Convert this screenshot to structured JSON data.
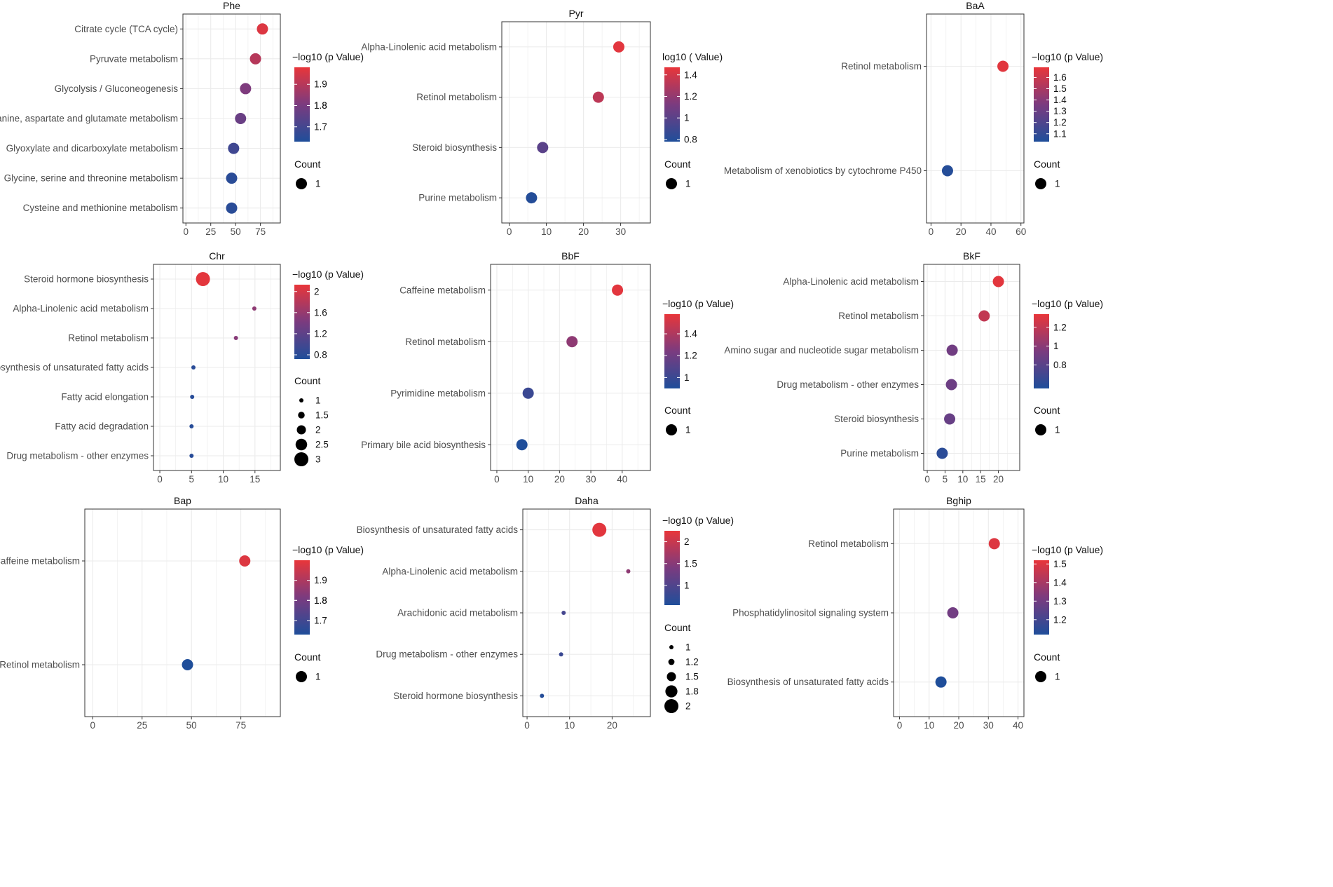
{
  "colors": {
    "low": "#1f4e9a",
    "mid": "#7b3b7f",
    "high": "#e8363a",
    "grid": "#ebebeb",
    "panel_border": "#333333"
  },
  "legend_count_title": "Count",
  "chart_data": [
    {
      "id": "phe",
      "type": "scatter",
      "title": "Phe",
      "color_title": "−log10 (p Value)",
      "categories": [
        "Citrate cycle (TCA cycle)",
        "Pyruvate metabolism",
        "Glycolysis / Gluconeogenesis",
        "Alanine, aspartate and glutamate metabolism",
        "Glyoxylate and dicarboxylate metabolism",
        "Glycine, serine and threonine metabolism",
        "Cysteine and methionine metabolism"
      ],
      "x": [
        77,
        70,
        60,
        55,
        48,
        46,
        46
      ],
      "color": [
        1.96,
        1.9,
        1.81,
        1.77,
        1.69,
        1.65,
        1.65
      ],
      "count": [
        1,
        1,
        1,
        1,
        1,
        1,
        1
      ],
      "xlim": [
        -3,
        95
      ],
      "xticks": [
        0,
        25,
        50,
        75
      ],
      "color_range": [
        1.63,
        1.98
      ],
      "color_ticks": [
        1.7,
        1.8,
        1.8,
        1.9
      ],
      "count_range": [
        1,
        1
      ],
      "count_ticks": [
        1
      ]
    },
    {
      "id": "pyr",
      "type": "scatter",
      "title": "Pyr",
      "color_title": "log10 (   Value)",
      "categories": [
        "Alpha-Linolenic acid metabolism",
        "Retinol metabolism",
        "Steroid biosynthesis",
        "Purine metabolism"
      ],
      "x": [
        29.5,
        24,
        9,
        6
      ],
      "color": [
        1.45,
        1.33,
        1.0,
        0.8
      ],
      "count": [
        1,
        1,
        1,
        1
      ],
      "xlim": [
        -2,
        38
      ],
      "xticks": [
        0,
        10,
        20,
        30
      ],
      "color_range": [
        0.78,
        1.47
      ],
      "color_ticks": [
        0.8,
        1.0,
        1.2,
        1.4
      ],
      "count_range": [
        1,
        1
      ],
      "count_ticks": [
        1
      ]
    },
    {
      "id": "baa",
      "type": "scatter",
      "title": "BaA",
      "color_title": "−log10 (p Value)",
      "categories": [
        "Retinol metabolism",
        "Metabolism of xenobiotics by cytochrome P450"
      ],
      "x": [
        48,
        11
      ],
      "color": [
        1.67,
        1.05
      ],
      "count": [
        1,
        1
      ],
      "xlim": [
        -3,
        62
      ],
      "xticks": [
        0,
        20,
        40,
        60
      ],
      "color_range": [
        1.03,
        1.69
      ],
      "color_ticks": [
        1.1,
        1.2,
        1.3,
        1.4,
        1.5,
        1.6
      ],
      "count_range": [
        1,
        1
      ],
      "count_ticks": [
        1
      ]
    },
    {
      "id": "chr",
      "type": "scatter",
      "title": "Chr",
      "color_title": "−log10 (p Value)",
      "categories": [
        "Steroid hormone biosynthesis",
        "Alpha-Linolenic acid metabolism",
        "Retinol metabolism",
        "Biosynthesis of unsaturated fatty acids",
        "Fatty acid elongation",
        "Fatty acid degradation",
        "Drug metabolism - other enzymes"
      ],
      "x": [
        6.8,
        14.9,
        12,
        5.3,
        5.1,
        5.0,
        5.0
      ],
      "color": [
        2.1,
        1.55,
        1.5,
        0.8,
        0.78,
        0.78,
        0.78
      ],
      "count": [
        3,
        1,
        1,
        1,
        1,
        1,
        1
      ],
      "xlim": [
        -1,
        19
      ],
      "xticks": [
        0,
        5,
        10,
        15
      ],
      "color_range": [
        0.72,
        2.13
      ],
      "color_ticks": [
        0.8,
        1.2,
        1.6,
        2.0
      ],
      "count_range": [
        1,
        3
      ],
      "count_ticks": [
        1.0,
        1.5,
        2.0,
        2.5,
        3.0
      ]
    },
    {
      "id": "bbf",
      "type": "scatter",
      "title": "BbF",
      "color_title": "−log10 (p Value)",
      "categories": [
        "Caffeine metabolism",
        "Retinol metabolism",
        "Pyrimidine metabolism",
        "Primary bile acid biosynthesis"
      ],
      "x": [
        38.5,
        24,
        10,
        8
      ],
      "color": [
        1.56,
        1.3,
        1.0,
        0.9
      ],
      "count": [
        1,
        1,
        1,
        1
      ],
      "xlim": [
        -2,
        49
      ],
      "xticks": [
        0,
        10,
        20,
        30,
        40
      ],
      "color_range": [
        0.9,
        1.58
      ],
      "color_ticks": [
        1.0,
        1.2,
        1.4
      ],
      "count_range": [
        1,
        1
      ],
      "count_ticks": [
        1
      ]
    },
    {
      "id": "bkf",
      "type": "scatter",
      "title": "BkF",
      "color_title": "−log10 (p Value)",
      "categories": [
        "Alpha-Linolenic acid metabolism",
        "Retinol metabolism",
        "Amino sugar and nucleotide sugar metabolism",
        "Drug metabolism - other enzymes",
        "Steroid biosynthesis",
        "Purine metabolism"
      ],
      "x": [
        20,
        16,
        7,
        6.8,
        6.3,
        4.2
      ],
      "color": [
        1.32,
        1.2,
        0.9,
        0.88,
        0.86,
        0.6
      ],
      "count": [
        1,
        1,
        1,
        1,
        1,
        1
      ],
      "xlim": [
        -1,
        26
      ],
      "xticks": [
        0,
        5,
        10,
        15,
        20
      ],
      "color_range": [
        0.55,
        1.34
      ],
      "color_ticks": [
        0.8,
        1.0,
        1.2
      ],
      "count_range": [
        1,
        1
      ],
      "count_ticks": [
        1
      ]
    },
    {
      "id": "bap",
      "type": "scatter",
      "title": "Bap",
      "color_title": "−log10 (p Value)",
      "categories": [
        "Caffeine metabolism",
        "Retinol metabolism"
      ],
      "x": [
        77,
        48
      ],
      "color": [
        1.98,
        1.63
      ],
      "count": [
        1,
        1
      ],
      "xlim": [
        -4,
        95
      ],
      "xticks": [
        0,
        25,
        50,
        75
      ],
      "color_range": [
        1.63,
        2.0
      ],
      "color_ticks": [
        1.7,
        1.8,
        1.8,
        1.9
      ],
      "count_range": [
        1,
        1
      ],
      "count_ticks": [
        1
      ]
    },
    {
      "id": "daha",
      "type": "scatter",
      "title": "Daha",
      "color_title": "−log10 (p Value)",
      "categories": [
        "Biosynthesis of unsaturated fatty acids",
        "Alpha-Linolenic acid metabolism",
        "Arachidonic acid metabolism",
        "Drug metabolism - other enzymes",
        "Steroid hormone biosynthesis"
      ],
      "x": [
        17,
        23.8,
        8.6,
        8,
        3.5
      ],
      "color": [
        2.2,
        1.55,
        0.9,
        0.8,
        0.6
      ],
      "count": [
        2,
        1,
        1,
        1,
        1
      ],
      "xlim": [
        -1,
        29
      ],
      "xticks": [
        0,
        10,
        20
      ],
      "color_range": [
        0.55,
        2.25
      ],
      "color_ticks": [
        1.0,
        1.5,
        2.0
      ],
      "count_range": [
        1,
        2
      ],
      "count_ticks": [
        1.0,
        1.2,
        1.5,
        1.8,
        2.0
      ]
    },
    {
      "id": "bghip",
      "type": "scatter",
      "title": "Bghip",
      "color_title": "−log10 (p Value)",
      "categories": [
        "Retinol metabolism",
        "Phosphatidylinositol signaling system",
        "Biosynthesis of unsaturated fatty acids"
      ],
      "x": [
        32,
        18,
        14
      ],
      "color": [
        1.5,
        1.3,
        1.12
      ],
      "count": [
        1,
        1,
        1
      ],
      "xlim": [
        -2,
        42
      ],
      "xticks": [
        0,
        10,
        20,
        30,
        40
      ],
      "color_range": [
        1.12,
        1.52
      ],
      "color_ticks": [
        1.2,
        1.3,
        1.4,
        1.5
      ],
      "count_range": [
        1,
        1
      ],
      "count_ticks": [
        1
      ]
    }
  ]
}
